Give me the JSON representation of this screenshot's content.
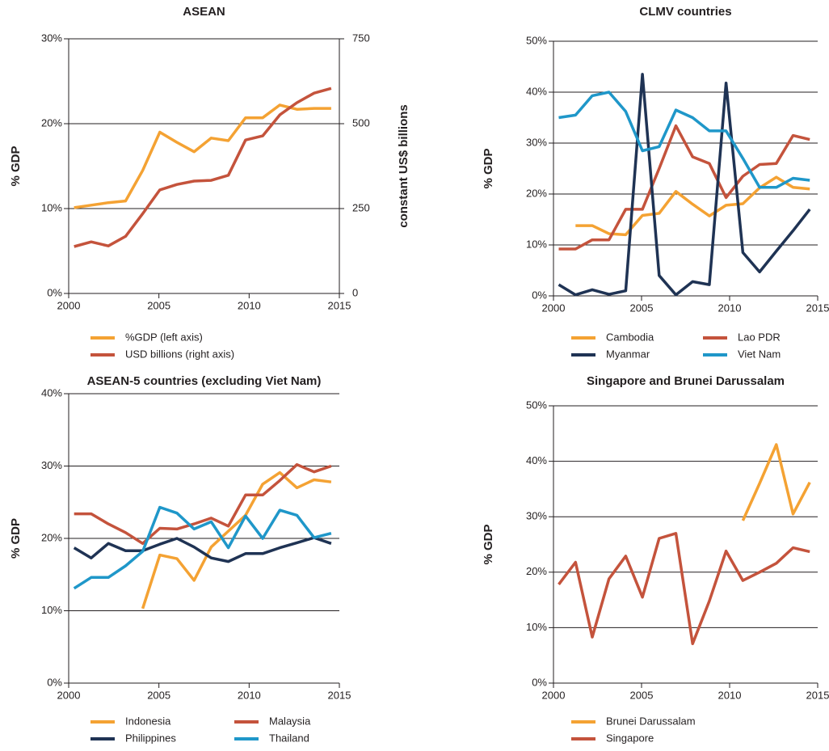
{
  "chart_data": [
    {
      "type": "line",
      "title": "ASEAN",
      "y_label": "% GDP",
      "y2_label": "constant US$ billions",
      "x": [
        2000.3,
        2001.25,
        2002.2,
        2003.15,
        2004.1,
        2005.05,
        2006,
        2006.95,
        2007.9,
        2008.85,
        2009.8,
        2010.75,
        2011.7,
        2012.65,
        2013.6,
        2014.55
      ],
      "xlim": [
        2000,
        2015
      ],
      "xticks": [
        2000,
        2005,
        2010,
        2015
      ],
      "ylim": [
        0,
        30
      ],
      "yticks": [
        {
          "value": 0,
          "label": "0%"
        },
        {
          "value": 10,
          "label": "10%"
        },
        {
          "value": 20,
          "label": "20%"
        },
        {
          "value": 30,
          "label": "30%"
        }
      ],
      "y2lim": [
        0,
        750
      ],
      "y2ticks": [
        0,
        250,
        500,
        750
      ],
      "grid": true,
      "series": [
        {
          "name": "%GDP (left axis)",
          "color": "#f4a233",
          "values": [
            10.1,
            10.4,
            10.7,
            10.9,
            14.5,
            19.0,
            17.8,
            16.7,
            18.3,
            18.0,
            20.7,
            20.7,
            22.2,
            21.7,
            21.8,
            21.8
          ]
        },
        {
          "name": "USD billions (right axis)",
          "color": "#c4533c",
          "axis": "y2",
          "values": [
            138,
            152,
            140,
            168,
            235,
            305,
            321,
            331,
            333,
            348,
            452,
            464,
            526,
            562,
            590,
            604
          ]
        }
      ]
    },
    {
      "type": "line",
      "title": "CLMV countries",
      "y_label": "% GDP",
      "x": [
        2000.3,
        2001.25,
        2002.2,
        2003.15,
        2004.1,
        2005.05,
        2006,
        2006.95,
        2007.9,
        2008.85,
        2009.8,
        2010.75,
        2011.7,
        2012.65,
        2013.6,
        2014.55
      ],
      "xlim": [
        2000,
        2015
      ],
      "xticks": [
        2000,
        2005,
        2010,
        2015
      ],
      "ylim": [
        0,
        50
      ],
      "yticks": [
        {
          "value": 0,
          "label": "0%"
        },
        {
          "value": 10,
          "label": "10%"
        },
        {
          "value": 20,
          "label": "20%"
        },
        {
          "value": 30,
          "label": "30%"
        },
        {
          "value": 40,
          "label": "40%"
        },
        {
          "value": 50,
          "label": "50%"
        }
      ],
      "grid": true,
      "series": [
        {
          "name": "Cambodia",
          "color": "#f4a233",
          "values": [
            null,
            13.8,
            13.8,
            12.2,
            12.0,
            15.8,
            16.2,
            20.5,
            18.0,
            15.7,
            17.8,
            18.1,
            21.2,
            23.3,
            21.3,
            21.0
          ]
        },
        {
          "name": "Lao PDR",
          "color": "#c4533c",
          "values": [
            9.2,
            9.2,
            11.0,
            11.0,
            17.0,
            17.0,
            25.0,
            33.4,
            27.3,
            26.0,
            19.3,
            23.5,
            25.8,
            26.0,
            31.5,
            30.7
          ]
        },
        {
          "name": "Myanmar",
          "color": "#1f3354",
          "values": [
            2.2,
            0.2,
            1.2,
            0.3,
            1.0,
            43.5,
            4.0,
            0.2,
            2.8,
            2.2,
            41.8,
            8.5,
            4.7,
            8.8,
            12.8,
            17.0
          ]
        },
        {
          "name": "Viet Nam",
          "color": "#1f97c9",
          "values": [
            35.0,
            35.5,
            39.3,
            40.0,
            36.2,
            28.5,
            29.3,
            36.5,
            35.0,
            32.4,
            32.4,
            27.0,
            21.3,
            21.3,
            23.1,
            22.7
          ]
        }
      ]
    },
    {
      "type": "line",
      "title": "ASEAN-5 countries (excluding Viet Nam)",
      "y_label": "% GDP",
      "x": [
        2000.3,
        2001.25,
        2002.2,
        2003.15,
        2004.1,
        2005.05,
        2006,
        2006.95,
        2007.9,
        2008.85,
        2009.8,
        2010.75,
        2011.7,
        2012.65,
        2013.6,
        2014.55
      ],
      "xlim": [
        2000,
        2015
      ],
      "xticks": [
        2000,
        2005,
        2010,
        2015
      ],
      "ylim": [
        0,
        40
      ],
      "yticks": [
        {
          "value": 0,
          "label": "0%"
        },
        {
          "value": 10,
          "label": "10%"
        },
        {
          "value": 20,
          "label": "20%"
        },
        {
          "value": 30,
          "label": "30%"
        },
        {
          "value": 40,
          "label": "40%"
        }
      ],
      "grid": true,
      "series": [
        {
          "name": "Indonesia",
          "color": "#f4a233",
          "values": [
            null,
            null,
            null,
            null,
            10.3,
            17.7,
            17.2,
            14.2,
            18.8,
            21.0,
            23.2,
            27.5,
            29.1,
            27.0,
            28.1,
            27.8
          ]
        },
        {
          "name": "Malaysia",
          "color": "#c4533c",
          "values": [
            23.4,
            23.4,
            22.0,
            20.8,
            19.3,
            21.4,
            21.3,
            22.0,
            22.8,
            21.7,
            26.0,
            26.0,
            28.0,
            30.2,
            29.2,
            30.0
          ]
        },
        {
          "name": "Philippines",
          "color": "#1f3354",
          "values": [
            18.7,
            17.3,
            19.3,
            18.3,
            18.3,
            19.2,
            20.0,
            18.8,
            17.3,
            16.8,
            17.9,
            17.9,
            18.7,
            19.4,
            20.1,
            19.3
          ]
        },
        {
          "name": "Thailand",
          "color": "#1f97c9",
          "values": [
            13.1,
            14.6,
            14.6,
            16.2,
            18.2,
            24.3,
            23.5,
            21.3,
            22.3,
            18.7,
            23.1,
            20.0,
            23.9,
            23.2,
            20.1,
            20.7
          ]
        }
      ]
    },
    {
      "type": "line",
      "title": "Singapore and Brunei Darussalam",
      "y_label": "% GDP",
      "x": [
        2000.3,
        2001.25,
        2002.2,
        2003.15,
        2004.1,
        2005.05,
        2006,
        2006.95,
        2007.9,
        2008.85,
        2009.8,
        2010.75,
        2011.7,
        2012.65,
        2013.6,
        2014.55
      ],
      "xlim": [
        2000,
        2015
      ],
      "xticks": [
        2000,
        2005,
        2010,
        2015
      ],
      "ylim": [
        0,
        50
      ],
      "yticks": [
        {
          "value": 0,
          "label": "0%"
        },
        {
          "value": 10,
          "label": "10%"
        },
        {
          "value": 20,
          "label": "20%"
        },
        {
          "value": 30,
          "label": "30%"
        },
        {
          "value": 40,
          "label": "40%"
        },
        {
          "value": 50,
          "label": "50%"
        }
      ],
      "grid": true,
      "series": [
        {
          "name": "Brunei Darussalam",
          "color": "#f4a233",
          "values": [
            null,
            null,
            null,
            null,
            null,
            null,
            null,
            null,
            null,
            null,
            null,
            29.3,
            36.0,
            43.0,
            30.5,
            36.2
          ]
        },
        {
          "name": "Singapore",
          "color": "#c4533c",
          "values": [
            17.8,
            21.8,
            8.3,
            18.8,
            22.9,
            15.5,
            26.1,
            27.0,
            7.1,
            14.8,
            23.8,
            18.5,
            20.0,
            21.6,
            24.4,
            23.7
          ]
        }
      ]
    }
  ]
}
